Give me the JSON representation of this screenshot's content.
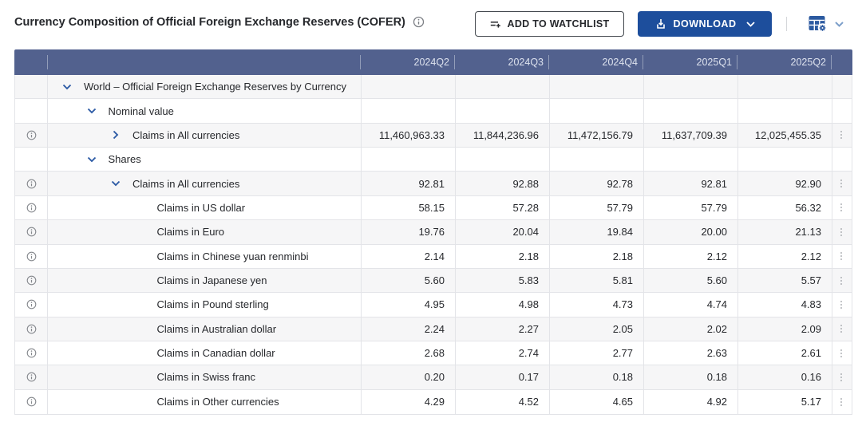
{
  "header": {
    "title": "Currency Composition of Official Foreign Exchange Reserves (COFER)"
  },
  "toolbar": {
    "watchlist_label": "ADD TO WATCHLIST",
    "download_label": "DOWNLOAD"
  },
  "colors": {
    "table_header_bg": "#52618e",
    "download_btn_bg": "#1d4e9c",
    "chevron_blue": "#2d5ba5",
    "zebra_row_bg": "#f6f6f7"
  },
  "table": {
    "columns": [
      "2024Q2",
      "2024Q3",
      "2024Q4",
      "2025Q1",
      "2025Q2"
    ],
    "rows": [
      {
        "label": "World – Official Foreign Exchange Reserves by Currency",
        "level": 1,
        "chevron": "down",
        "info": false,
        "dots": false,
        "values": [
          "",
          "",
          "",
          "",
          ""
        ]
      },
      {
        "label": "Nominal value",
        "level": 2,
        "chevron": "down",
        "info": false,
        "dots": false,
        "values": [
          "",
          "",
          "",
          "",
          ""
        ]
      },
      {
        "label": "Claims in All currencies",
        "level": 3,
        "chevron": "right",
        "info": true,
        "dots": true,
        "values": [
          "11,460,963.33",
          "11,844,236.96",
          "11,472,156.79",
          "11,637,709.39",
          "12,025,455.35"
        ]
      },
      {
        "label": "Shares",
        "level": 2,
        "chevron": "down",
        "info": false,
        "dots": false,
        "values": [
          "",
          "",
          "",
          "",
          ""
        ]
      },
      {
        "label": "Claims in All currencies",
        "level": 3,
        "chevron": "down",
        "info": true,
        "dots": true,
        "values": [
          "92.81",
          "92.88",
          "92.78",
          "92.81",
          "92.90"
        ]
      },
      {
        "label": "Claims in US dollar",
        "level": 4,
        "chevron": null,
        "info": true,
        "dots": true,
        "values": [
          "58.15",
          "57.28",
          "57.79",
          "57.79",
          "56.32"
        ]
      },
      {
        "label": "Claims in Euro",
        "level": 4,
        "chevron": null,
        "info": true,
        "dots": true,
        "values": [
          "19.76",
          "20.04",
          "19.84",
          "20.00",
          "21.13"
        ]
      },
      {
        "label": "Claims in Chinese yuan renminbi",
        "level": 4,
        "chevron": null,
        "info": true,
        "dots": true,
        "values": [
          "2.14",
          "2.18",
          "2.18",
          "2.12",
          "2.12"
        ]
      },
      {
        "label": "Claims in Japanese yen",
        "level": 4,
        "chevron": null,
        "info": true,
        "dots": true,
        "values": [
          "5.60",
          "5.83",
          "5.81",
          "5.60",
          "5.57"
        ]
      },
      {
        "label": "Claims in Pound sterling",
        "level": 4,
        "chevron": null,
        "info": true,
        "dots": true,
        "values": [
          "4.95",
          "4.98",
          "4.73",
          "4.74",
          "4.83"
        ]
      },
      {
        "label": "Claims in Australian dollar",
        "level": 4,
        "chevron": null,
        "info": true,
        "dots": true,
        "values": [
          "2.24",
          "2.27",
          "2.05",
          "2.02",
          "2.09"
        ]
      },
      {
        "label": "Claims in Canadian dollar",
        "level": 4,
        "chevron": null,
        "info": true,
        "dots": true,
        "values": [
          "2.68",
          "2.74",
          "2.77",
          "2.63",
          "2.61"
        ]
      },
      {
        "label": "Claims in Swiss franc",
        "level": 4,
        "chevron": null,
        "info": true,
        "dots": true,
        "values": [
          "0.20",
          "0.17",
          "0.18",
          "0.18",
          "0.16"
        ]
      },
      {
        "label": "Claims in Other currencies",
        "level": 4,
        "chevron": null,
        "info": true,
        "dots": true,
        "values": [
          "4.29",
          "4.52",
          "4.65",
          "4.92",
          "5.17"
        ]
      }
    ]
  }
}
